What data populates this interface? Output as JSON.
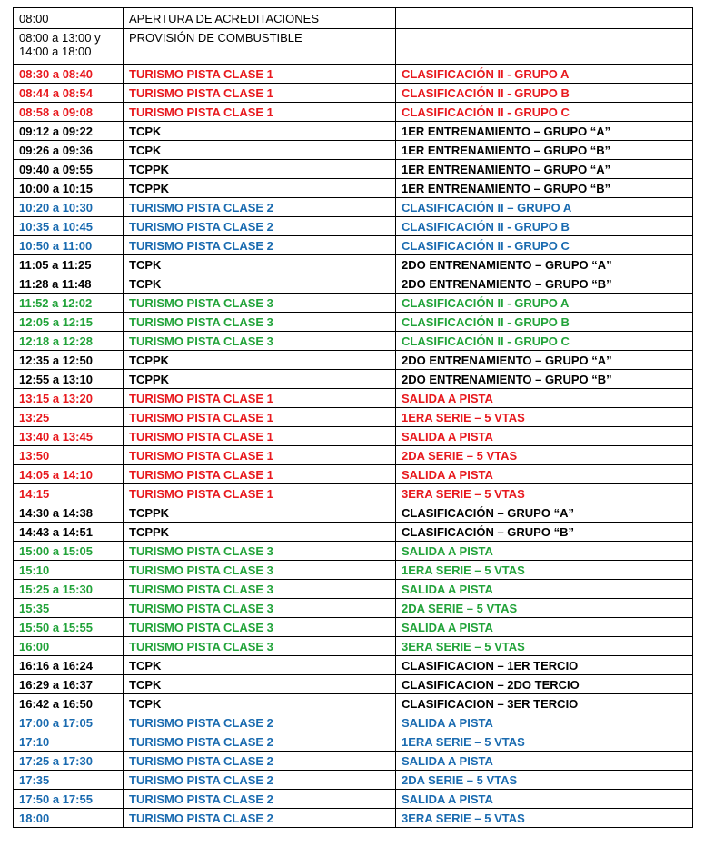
{
  "table": {
    "rows": [
      {
        "cells": [
          "08:00",
          "APERTURA DE ACREDITACIONES"
        ],
        "color": "#000000",
        "bold": false
      },
      {
        "cells": [
          "08:00 a 13:00 y 14:00 a 18:00",
          "PROVISIÓN DE COMBUSTIBLE"
        ],
        "color": "#000000",
        "bold": false
      },
      {
        "cells": [
          "08:30 a 08:40",
          "TURISMO PISTA CLASE 1",
          "CLASIFICACIÓN II - GRUPO A"
        ],
        "color": "#e8191e",
        "bold": true
      },
      {
        "cells": [
          "08:44 a 08:54",
          "TURISMO PISTA CLASE 1",
          "CLASIFICACIÓN II - GRUPO B"
        ],
        "color": "#e8191e",
        "bold": true
      },
      {
        "cells": [
          "08:58 a 09:08",
          "TURISMO PISTA CLASE 1",
          "CLASIFICACIÓN II - GRUPO C"
        ],
        "color": "#e8191e",
        "bold": true
      },
      {
        "cells": [
          "09:12 a 09:22",
          "TCPK",
          "1ER ENTRENAMIENTO – GRUPO “A”"
        ],
        "color": "#000000",
        "bold": true
      },
      {
        "cells": [
          "09:26 a 09:36",
          "TCPK",
          "1ER ENTRENAMIENTO – GRUPO “B”"
        ],
        "color": "#000000",
        "bold": true
      },
      {
        "cells": [
          "09:40 a 09:55",
          "TCPPK",
          "1ER ENTRENAMIENTO – GRUPO “A”"
        ],
        "color": "#000000",
        "bold": true
      },
      {
        "cells": [
          "10:00 a 10:15",
          "TCPPK",
          "1ER ENTRENAMIENTO – GRUPO “B”"
        ],
        "color": "#000000",
        "bold": true
      },
      {
        "cells": [
          "10:20 a 10:30",
          "TURISMO PISTA CLASE 2",
          "CLASIFICACIÓN II – GRUPO A"
        ],
        "color": "#1a6bb0",
        "bold": true
      },
      {
        "cells": [
          "10:35 a 10:45",
          "TURISMO PISTA CLASE 2",
          "CLASIFICACIÓN II - GRUPO B"
        ],
        "color": "#1a6bb0",
        "bold": true
      },
      {
        "cells": [
          "10:50 a 11:00",
          "TURISMO PISTA CLASE 2",
          "CLASIFICACIÓN II - GRUPO C"
        ],
        "color": "#1a6bb0",
        "bold": true
      },
      {
        "cells": [
          "11:05 a 11:25",
          "TCPK",
          "2DO ENTRENAMIENTO – GRUPO “A”"
        ],
        "color": "#000000",
        "bold": true
      },
      {
        "cells": [
          "11:28 a 11:48",
          "TCPK",
          "2DO ENTRENAMIENTO – GRUPO “B”"
        ],
        "color": "#000000",
        "bold": true
      },
      {
        "cells": [
          "11:52 a 12:02",
          "TURISMO PISTA CLASE 3",
          "CLASIFICACIÓN II - GRUPO A"
        ],
        "color": "#22a33a",
        "bold": true
      },
      {
        "cells": [
          "12:05 a 12:15",
          "TURISMO PISTA CLASE 3",
          "CLASIFICACIÓN II - GRUPO B"
        ],
        "color": "#22a33a",
        "bold": true
      },
      {
        "cells": [
          "12:18 a 12:28",
          "TURISMO PISTA CLASE 3",
          "CLASIFICACIÓN II - GRUPO C"
        ],
        "color": "#22a33a",
        "bold": true
      },
      {
        "cells": [
          "12:35 a 12:50",
          "TCPPK",
          "2DO ENTRENAMIENTO – GRUPO “A”"
        ],
        "color": "#000000",
        "bold": true
      },
      {
        "cells": [
          "12:55 a 13:10",
          "TCPPK",
          "2DO ENTRENAMIENTO – GRUPO “B”"
        ],
        "color": "#000000",
        "bold": true
      },
      {
        "cells": [
          "13:15 a 13:20",
          "TURISMO PISTA CLASE 1",
          "SALIDA A PISTA"
        ],
        "color": "#e8191e",
        "bold": true
      },
      {
        "cells": [
          "13:25",
          "TURISMO PISTA CLASE 1",
          "1ERA SERIE – 5 VTAS"
        ],
        "color": "#e8191e",
        "bold": true
      },
      {
        "cells": [
          "13:40 a 13:45",
          "TURISMO PISTA CLASE 1",
          "SALIDA A PISTA"
        ],
        "color": "#e8191e",
        "bold": true
      },
      {
        "cells": [
          "13:50",
          "TURISMO PISTA CLASE 1",
          "2DA SERIE – 5 VTAS"
        ],
        "color": "#e8191e",
        "bold": true
      },
      {
        "cells": [
          "14:05 a 14:10",
          "TURISMO PISTA CLASE 1",
          "SALIDA A PISTA"
        ],
        "color": "#e8191e",
        "bold": true
      },
      {
        "cells": [
          "14:15",
          "TURISMO PISTA CLASE 1",
          "3ERA SERIE – 5 VTAS"
        ],
        "color": "#e8191e",
        "bold": true
      },
      {
        "cells": [
          "14:30 a 14:38",
          "TCPPK",
          "CLASIFICACIÓN – GRUPO “A”"
        ],
        "color": "#000000",
        "bold": true
      },
      {
        "cells": [
          "14:43 a 14:51",
          "TCPPK",
          "CLASIFICACIÓN – GRUPO “B”"
        ],
        "color": "#000000",
        "bold": true
      },
      {
        "cells": [
          "15:00 a 15:05",
          "TURISMO PISTA CLASE 3",
          "SALIDA A PISTA"
        ],
        "color": "#22a33a",
        "bold": true
      },
      {
        "cells": [
          "15:10",
          "TURISMO PISTA CLASE 3",
          "1ERA SERIE – 5 VTAS"
        ],
        "color": "#22a33a",
        "bold": true
      },
      {
        "cells": [
          "15:25 a 15:30",
          "TURISMO PISTA CLASE 3",
          "SALIDA A PISTA"
        ],
        "color": "#22a33a",
        "bold": true
      },
      {
        "cells": [
          "15:35",
          "TURISMO PISTA CLASE 3",
          "2DA SERIE – 5 VTAS"
        ],
        "color": "#22a33a",
        "bold": true
      },
      {
        "cells": [
          "15:50 a 15:55",
          "TURISMO PISTA CLASE 3",
          "SALIDA A PISTA"
        ],
        "color": "#22a33a",
        "bold": true
      },
      {
        "cells": [
          "16:00",
          "TURISMO PISTA CLASE 3",
          "3ERA SERIE – 5 VTAS"
        ],
        "color": "#22a33a",
        "bold": true
      },
      {
        "cells": [
          "16:16 a 16:24",
          "TCPK",
          "CLASIFICACION – 1ER TERCIO"
        ],
        "color": "#000000",
        "bold": true
      },
      {
        "cells": [
          "16:29 a 16:37",
          "TCPK",
          "CLASIFICACION – 2DO TERCIO"
        ],
        "color": "#000000",
        "bold": true
      },
      {
        "cells": [
          "16:42 a 16:50",
          "TCPK",
          "CLASIFICACION – 3ER TERCIO"
        ],
        "color": "#000000",
        "bold": true
      },
      {
        "cells": [
          "17:00 a 17:05",
          "TURISMO PISTA CLASE 2",
          "SALIDA A PISTA"
        ],
        "color": "#1a6bb0",
        "bold": true
      },
      {
        "cells": [
          "17:10",
          "TURISMO PISTA CLASE 2",
          "1ERA SERIE – 5 VTAS"
        ],
        "color": "#1a6bb0",
        "bold": true
      },
      {
        "cells": [
          "17:25 a 17:30",
          "TURISMO PISTA CLASE 2",
          "SALIDA A PISTA"
        ],
        "color": "#1a6bb0",
        "bold": true
      },
      {
        "cells": [
          "17:35",
          "TURISMO PISTA CLASE 2",
          "2DA SERIE – 5 VTAS"
        ],
        "color": "#1a6bb0",
        "bold": true
      },
      {
        "cells": [
          "17:50 a 17:55",
          "TURISMO PISTA CLASE 2",
          "SALIDA A PISTA"
        ],
        "color": "#1a6bb0",
        "bold": true
      },
      {
        "cells": [
          "18:00",
          "TURISMO PISTA CLASE 2",
          "3ERA SERIE – 5 VTAS"
        ],
        "color": "#1a6bb0",
        "bold": true
      }
    ]
  }
}
